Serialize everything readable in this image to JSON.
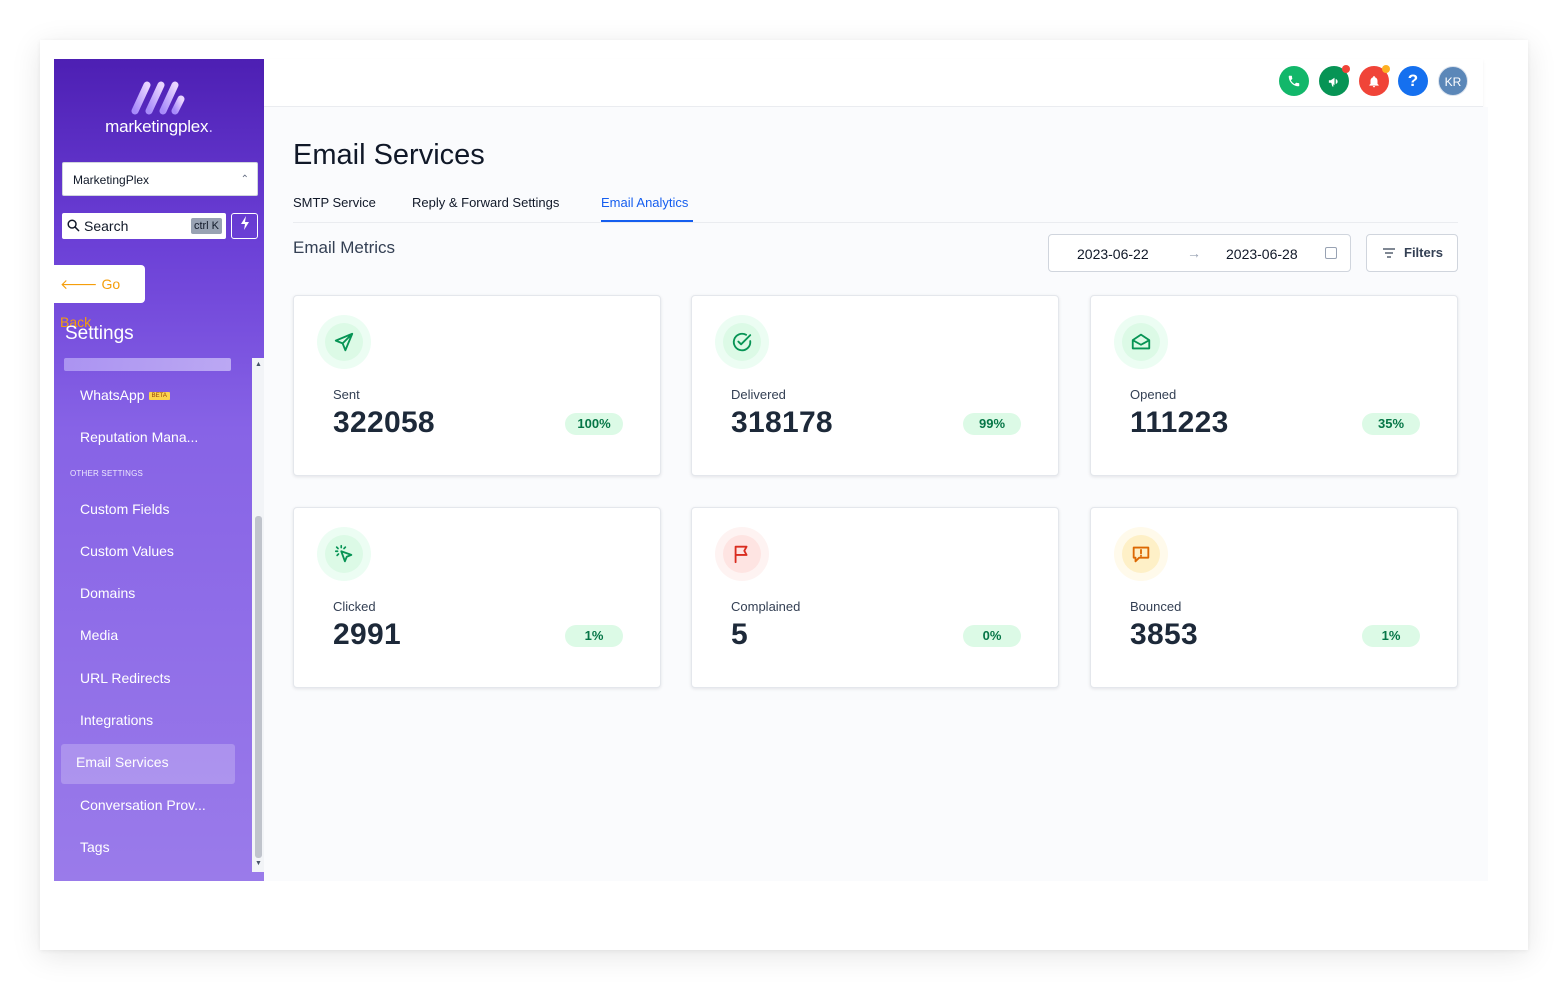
{
  "colors": {
    "accent": "#155eef",
    "sidebar_top": "#4d1fb3",
    "sidebar_bottom": "#9a7bea",
    "success_badge_bg": "#dcfae6",
    "success_badge_text": "#067647",
    "goback": "#f59e0b"
  },
  "brand": {
    "name": "marketingplex",
    "dot": "."
  },
  "sidebar": {
    "account": "MarketingPlex",
    "search_label": "Search",
    "search_shortcut": "ctrl K",
    "go_back": "Go Back",
    "section_title": "Settings",
    "items": [
      {
        "label": "WhatsApp",
        "badge": "BETA"
      },
      {
        "label": "Reputation Mana..."
      },
      {
        "label": "Custom Fields"
      },
      {
        "label": "Custom Values"
      },
      {
        "label": "Domains"
      },
      {
        "label": "Media"
      },
      {
        "label": "URL Redirects"
      },
      {
        "label": "Integrations"
      },
      {
        "label": "Email Services",
        "active": true
      },
      {
        "label": "Conversation Prov..."
      },
      {
        "label": "Tags"
      }
    ],
    "other_settings_label": "OTHER SETTINGS"
  },
  "header": {
    "icons": [
      "phone-icon",
      "megaphone-icon",
      "bell-icon",
      "help-icon"
    ],
    "avatar_initials": "KR"
  },
  "page": {
    "title": "Email Services",
    "tabs": [
      {
        "label": "SMTP Service"
      },
      {
        "label": "Reply & Forward Settings"
      },
      {
        "label": "Email Analytics",
        "active": true
      }
    ],
    "section_title": "Email Metrics",
    "date_from": "2023-06-22",
    "date_to": "2023-06-28",
    "date_arrow": "→",
    "filters_label": "Filters"
  },
  "metrics": [
    {
      "label": "Sent",
      "value": "322058",
      "percent": "100%",
      "icon": "send-icon",
      "color": "#079455",
      "bg": "#dcfae6"
    },
    {
      "label": "Delivered",
      "value": "318178",
      "percent": "99%",
      "icon": "check-circle-icon",
      "color": "#079455",
      "bg": "#dcfae6"
    },
    {
      "label": "Opened",
      "value": "111223",
      "percent": "35%",
      "icon": "mail-open-icon",
      "color": "#079455",
      "bg": "#dcfae6"
    },
    {
      "label": "Clicked",
      "value": "2991",
      "percent": "1%",
      "icon": "cursor-click-icon",
      "color": "#079455",
      "bg": "#dcfae6"
    },
    {
      "label": "Complained",
      "value": "5",
      "percent": "0%",
      "icon": "flag-icon",
      "color": "#d92d20",
      "bg": "#fee4e2"
    },
    {
      "label": "Bounced",
      "value": "3853",
      "percent": "1%",
      "icon": "alert-message-icon",
      "color": "#dc6803",
      "bg": "#fef0c7"
    }
  ]
}
